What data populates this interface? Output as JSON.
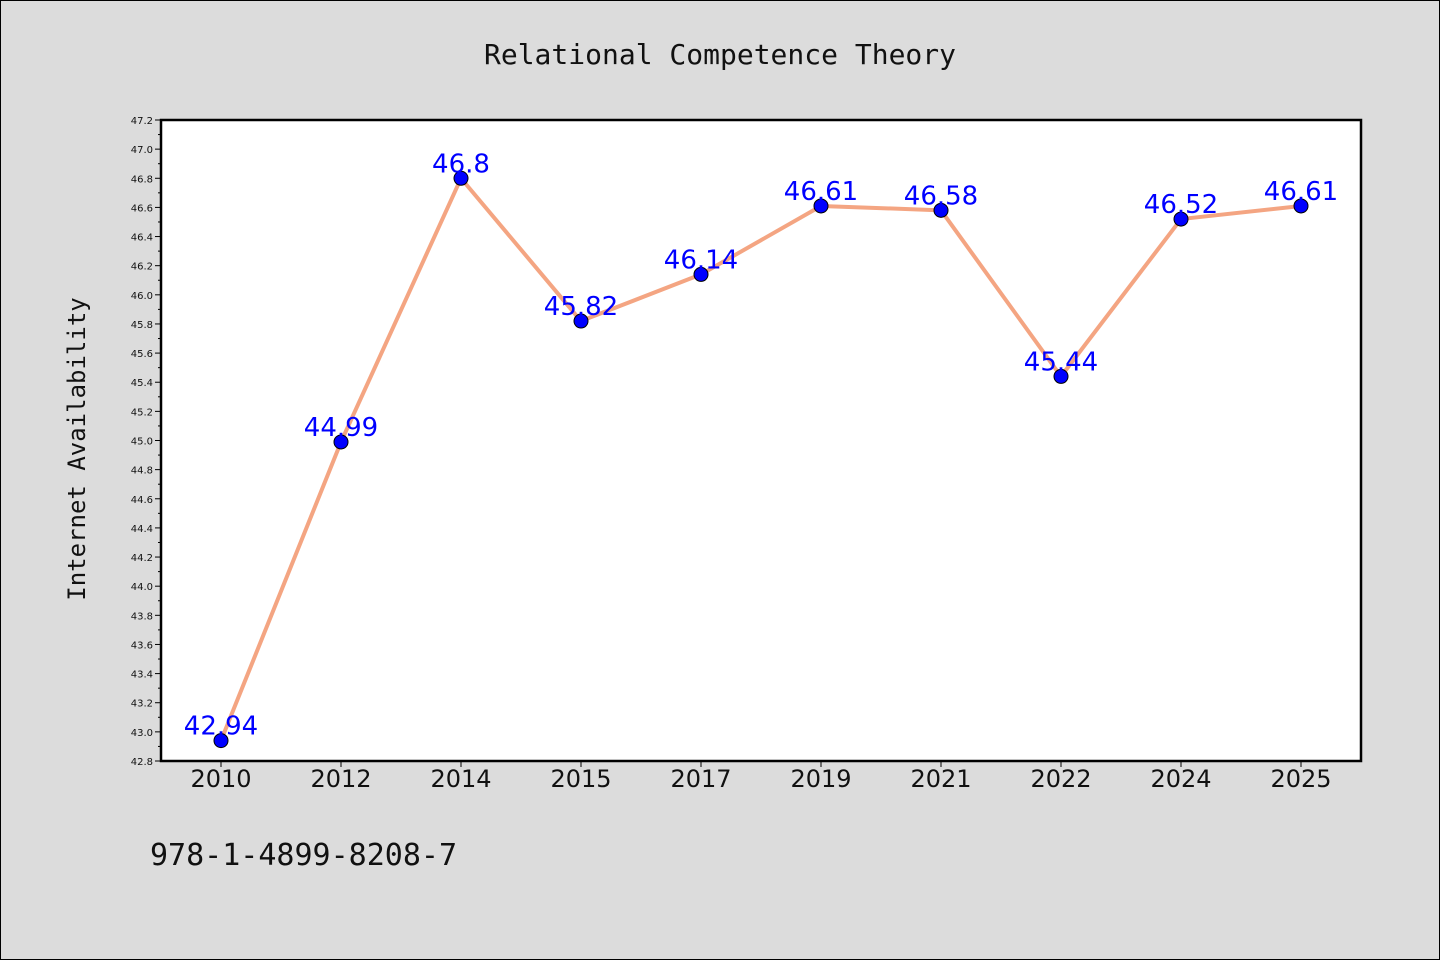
{
  "chart_data": {
    "type": "line",
    "title": "Relational Competence Theory",
    "xlabel": "",
    "ylabel": "Internet Availability",
    "categories": [
      "2010",
      "2012",
      "2014",
      "2015",
      "2017",
      "2019",
      "2021",
      "2022",
      "2024",
      "2025"
    ],
    "series": [
      {
        "values": [
          42.94,
          44.99,
          46.8,
          45.82,
          46.14,
          46.61,
          46.58,
          45.44,
          46.52,
          46.61
        ],
        "point_labels": [
          "42.94",
          "44.99",
          "46.8",
          "45.82",
          "46.14",
          "46.61",
          "46.58",
          "45.44",
          "46.52",
          "46.61"
        ],
        "line_color": "#f4a582",
        "marker_color": "#0000ff"
      }
    ],
    "ylim": [
      42.8,
      47.2
    ],
    "yticks": [
      "42.8",
      "43.0",
      "43.2",
      "43.4",
      "43.6",
      "43.8",
      "44.0",
      "44.2",
      "44.4",
      "44.6",
      "44.8",
      "45.0",
      "45.2",
      "45.4",
      "45.6",
      "45.8",
      "46.0",
      "46.2",
      "46.4",
      "46.6",
      "46.8",
      "47.0",
      "47.2"
    ],
    "grid": false,
    "legend": "none"
  },
  "footer": {
    "isbn": "978-1-4899-8208-7"
  }
}
